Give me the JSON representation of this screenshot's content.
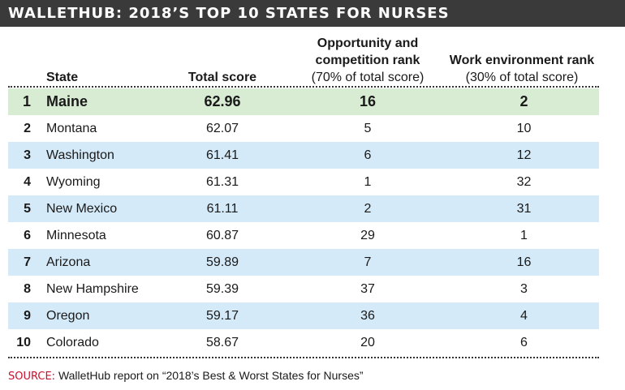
{
  "title": "WALLETHUB: 2018’S TOP 10 STATES FOR NURSES",
  "headers": {
    "state": "State",
    "total": "Total score",
    "opp_line1": "Opportunity and",
    "opp_line2": "competition rank",
    "opp_sub": "(70% of total score)",
    "work_line1": "Work environment rank",
    "work_sub": "(30% of total score)"
  },
  "source": {
    "label": "SOURCE:",
    "text": "WalletHub report on “2018’s Best & Worst States for Nurses”"
  },
  "colors": {
    "banner_bg": "#3a3a3a",
    "highlight_row": "#d8ecd3",
    "alt_row": "#d4eaf8",
    "source_label": "#c8102e"
  },
  "chart_data": {
    "type": "table",
    "title": "WALLETHUB: 2018’S TOP 10 STATES FOR NURSES",
    "columns": [
      "",
      "State",
      "Total score",
      "Opportunity and competition rank (70% of total score)",
      "Work environment rank (30% of total score)"
    ],
    "rows": [
      {
        "rank": "1",
        "state": "Maine",
        "total": "62.96",
        "opp": "16",
        "work": "2"
      },
      {
        "rank": "2",
        "state": "Montana",
        "total": "62.07",
        "opp": "5",
        "work": "10"
      },
      {
        "rank": "3",
        "state": "Washington",
        "total": "61.41",
        "opp": "6",
        "work": "12"
      },
      {
        "rank": "4",
        "state": "Wyoming",
        "total": "61.31",
        "opp": "1",
        "work": "32"
      },
      {
        "rank": "5",
        "state": "New Mexico",
        "total": "61.11",
        "opp": "2",
        "work": "31"
      },
      {
        "rank": "6",
        "state": "Minnesota",
        "total": "60.87",
        "opp": "29",
        "work": "1"
      },
      {
        "rank": "7",
        "state": "Arizona",
        "total": "59.89",
        "opp": "7",
        "work": "16"
      },
      {
        "rank": "8",
        "state": "New Hampshire",
        "total": "59.39",
        "opp": "37",
        "work": "3"
      },
      {
        "rank": "9",
        "state": "Oregon",
        "total": "59.17",
        "opp": "36",
        "work": "4"
      },
      {
        "rank": "10",
        "state": "Colorado",
        "total": "58.67",
        "opp": "20",
        "work": "6"
      }
    ],
    "highlighted_row": "Maine"
  }
}
